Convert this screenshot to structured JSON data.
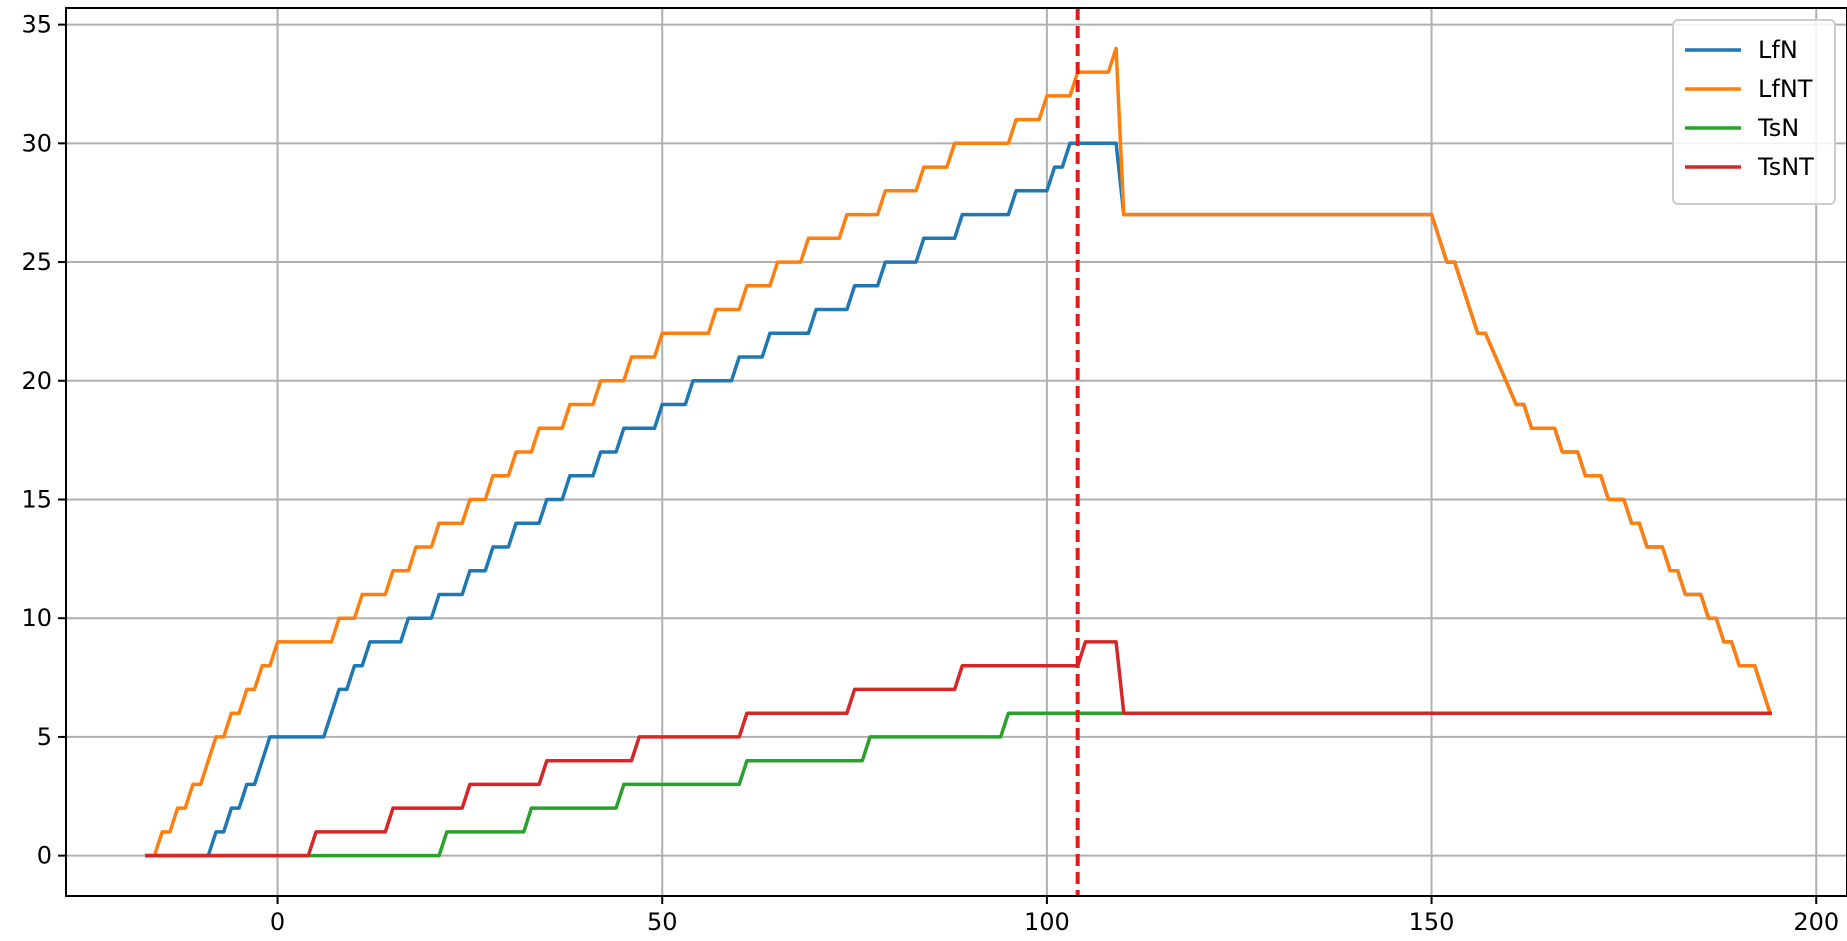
{
  "chart_data": {
    "type": "line",
    "title": "",
    "xlabel": "",
    "ylabel": "",
    "xlim": [
      -27.5,
      204
    ],
    "ylim": [
      -1.7,
      35.7
    ],
    "xticks": [
      0,
      50,
      100,
      150,
      200
    ],
    "yticks": [
      0,
      5,
      10,
      15,
      20,
      25,
      30,
      35
    ],
    "grid": true,
    "legend_position": "top-right",
    "vline": {
      "x": 104,
      "color": "#e41a1c",
      "style": "dashed"
    },
    "series": [
      {
        "name": "LfN",
        "color": "#1f77b4",
        "points": [
          [
            -17,
            0
          ],
          [
            -9,
            0
          ],
          [
            -8,
            1
          ],
          [
            -7,
            1
          ],
          [
            -6,
            2
          ],
          [
            -5,
            2
          ],
          [
            -4,
            3
          ],
          [
            -3,
            3
          ],
          [
            -1,
            5
          ],
          [
            6,
            5
          ],
          [
            8,
            7
          ],
          [
            9,
            7
          ],
          [
            10,
            8
          ],
          [
            11,
            8
          ],
          [
            12,
            9
          ],
          [
            16,
            9
          ],
          [
            17,
            10
          ],
          [
            20,
            10
          ],
          [
            21,
            11
          ],
          [
            24,
            11
          ],
          [
            25,
            12
          ],
          [
            27,
            12
          ],
          [
            28,
            13
          ],
          [
            30,
            13
          ],
          [
            31,
            14
          ],
          [
            34,
            14
          ],
          [
            35,
            15
          ],
          [
            37,
            15
          ],
          [
            38,
            16
          ],
          [
            41,
            16
          ],
          [
            42,
            17
          ],
          [
            44,
            17
          ],
          [
            45,
            18
          ],
          [
            49,
            18
          ],
          [
            50,
            19
          ],
          [
            53,
            19
          ],
          [
            54,
            20
          ],
          [
            59,
            20
          ],
          [
            60,
            21
          ],
          [
            63,
            21
          ],
          [
            64,
            22
          ],
          [
            69,
            22
          ],
          [
            70,
            23
          ],
          [
            74,
            23
          ],
          [
            75,
            24
          ],
          [
            78,
            24
          ],
          [
            79,
            25
          ],
          [
            83,
            25
          ],
          [
            84,
            26
          ],
          [
            88,
            26
          ],
          [
            89,
            27
          ],
          [
            95,
            27
          ],
          [
            96,
            28
          ],
          [
            100,
            28
          ],
          [
            101,
            29
          ],
          [
            102,
            29
          ],
          [
            103,
            30
          ],
          [
            109,
            30
          ],
          [
            110,
            27
          ],
          [
            150,
            27
          ],
          [
            152,
            25
          ],
          [
            153,
            25
          ],
          [
            156,
            22
          ],
          [
            157,
            22
          ],
          [
            161,
            19
          ],
          [
            162,
            19
          ],
          [
            163,
            18
          ],
          [
            166,
            18
          ],
          [
            167,
            17
          ],
          [
            169,
            17
          ],
          [
            170,
            16
          ],
          [
            172,
            16
          ],
          [
            173,
            15
          ],
          [
            175,
            15
          ],
          [
            176,
            14
          ],
          [
            177,
            14
          ],
          [
            178,
            13
          ],
          [
            180,
            13
          ],
          [
            181,
            12
          ],
          [
            182,
            12
          ],
          [
            183,
            11
          ],
          [
            185,
            11
          ],
          [
            186,
            10
          ],
          [
            187,
            10
          ],
          [
            188,
            9
          ],
          [
            189,
            9
          ],
          [
            190,
            8
          ],
          [
            192,
            8
          ],
          [
            193,
            7
          ],
          [
            194,
            6
          ]
        ]
      },
      {
        "name": "LfNT",
        "color": "#ff7f0e",
        "points": [
          [
            -17,
            0
          ],
          [
            -16,
            0
          ],
          [
            -15,
            1
          ],
          [
            -14,
            1
          ],
          [
            -13,
            2
          ],
          [
            -12,
            2
          ],
          [
            -11,
            3
          ],
          [
            -10,
            3
          ],
          [
            -8,
            5
          ],
          [
            -7,
            5
          ],
          [
            -6,
            6
          ],
          [
            -5,
            6
          ],
          [
            -4,
            7
          ],
          [
            -3,
            7
          ],
          [
            -2,
            8
          ],
          [
            -1,
            8
          ],
          [
            0,
            9
          ],
          [
            7,
            9
          ],
          [
            8,
            10
          ],
          [
            10,
            10
          ],
          [
            11,
            11
          ],
          [
            14,
            11
          ],
          [
            15,
            12
          ],
          [
            17,
            12
          ],
          [
            18,
            13
          ],
          [
            20,
            13
          ],
          [
            21,
            14
          ],
          [
            24,
            14
          ],
          [
            25,
            15
          ],
          [
            27,
            15
          ],
          [
            28,
            16
          ],
          [
            30,
            16
          ],
          [
            31,
            17
          ],
          [
            33,
            17
          ],
          [
            34,
            18
          ],
          [
            37,
            18
          ],
          [
            38,
            19
          ],
          [
            41,
            19
          ],
          [
            42,
            20
          ],
          [
            45,
            20
          ],
          [
            46,
            21
          ],
          [
            49,
            21
          ],
          [
            50,
            22
          ],
          [
            56,
            22
          ],
          [
            57,
            23
          ],
          [
            60,
            23
          ],
          [
            61,
            24
          ],
          [
            64,
            24
          ],
          [
            65,
            25
          ],
          [
            68,
            25
          ],
          [
            69,
            26
          ],
          [
            73,
            26
          ],
          [
            74,
            27
          ],
          [
            78,
            27
          ],
          [
            79,
            28
          ],
          [
            83,
            28
          ],
          [
            84,
            29
          ],
          [
            87,
            29
          ],
          [
            88,
            30
          ],
          [
            95,
            30
          ],
          [
            96,
            31
          ],
          [
            99,
            31
          ],
          [
            100,
            32
          ],
          [
            103,
            32
          ],
          [
            104,
            33
          ],
          [
            108,
            33
          ],
          [
            109,
            34
          ],
          [
            110,
            27
          ],
          [
            150,
            27
          ],
          [
            152,
            25
          ],
          [
            153,
            25
          ],
          [
            156,
            22
          ],
          [
            157,
            22
          ],
          [
            161,
            19
          ],
          [
            162,
            19
          ],
          [
            163,
            18
          ],
          [
            166,
            18
          ],
          [
            167,
            17
          ],
          [
            169,
            17
          ],
          [
            170,
            16
          ],
          [
            172,
            16
          ],
          [
            173,
            15
          ],
          [
            175,
            15
          ],
          [
            176,
            14
          ],
          [
            177,
            14
          ],
          [
            178,
            13
          ],
          [
            180,
            13
          ],
          [
            181,
            12
          ],
          [
            182,
            12
          ],
          [
            183,
            11
          ],
          [
            185,
            11
          ],
          [
            186,
            10
          ],
          [
            187,
            10
          ],
          [
            188,
            9
          ],
          [
            189,
            9
          ],
          [
            190,
            8
          ],
          [
            192,
            8
          ],
          [
            193,
            7
          ],
          [
            194,
            6
          ]
        ]
      },
      {
        "name": "TsN",
        "color": "#2ca02c",
        "points": [
          [
            -17,
            0
          ],
          [
            21,
            0
          ],
          [
            22,
            1
          ],
          [
            32,
            1
          ],
          [
            33,
            2
          ],
          [
            44,
            2
          ],
          [
            45,
            3
          ],
          [
            60,
            3
          ],
          [
            61,
            4
          ],
          [
            76,
            4
          ],
          [
            77,
            5
          ],
          [
            94,
            5
          ],
          [
            95,
            6
          ],
          [
            194,
            6
          ]
        ]
      },
      {
        "name": "TsNT",
        "color": "#d62728",
        "points": [
          [
            -17,
            0
          ],
          [
            4,
            0
          ],
          [
            5,
            1
          ],
          [
            14,
            1
          ],
          [
            15,
            2
          ],
          [
            24,
            2
          ],
          [
            25,
            3
          ],
          [
            34,
            3
          ],
          [
            35,
            4
          ],
          [
            46,
            4
          ],
          [
            47,
            5
          ],
          [
            60,
            5
          ],
          [
            61,
            6
          ],
          [
            74,
            6
          ],
          [
            75,
            7
          ],
          [
            88,
            7
          ],
          [
            89,
            8
          ],
          [
            104,
            8
          ],
          [
            105,
            9
          ],
          [
            109,
            9
          ],
          [
            110,
            6
          ],
          [
            194,
            6
          ]
        ]
      }
    ]
  }
}
